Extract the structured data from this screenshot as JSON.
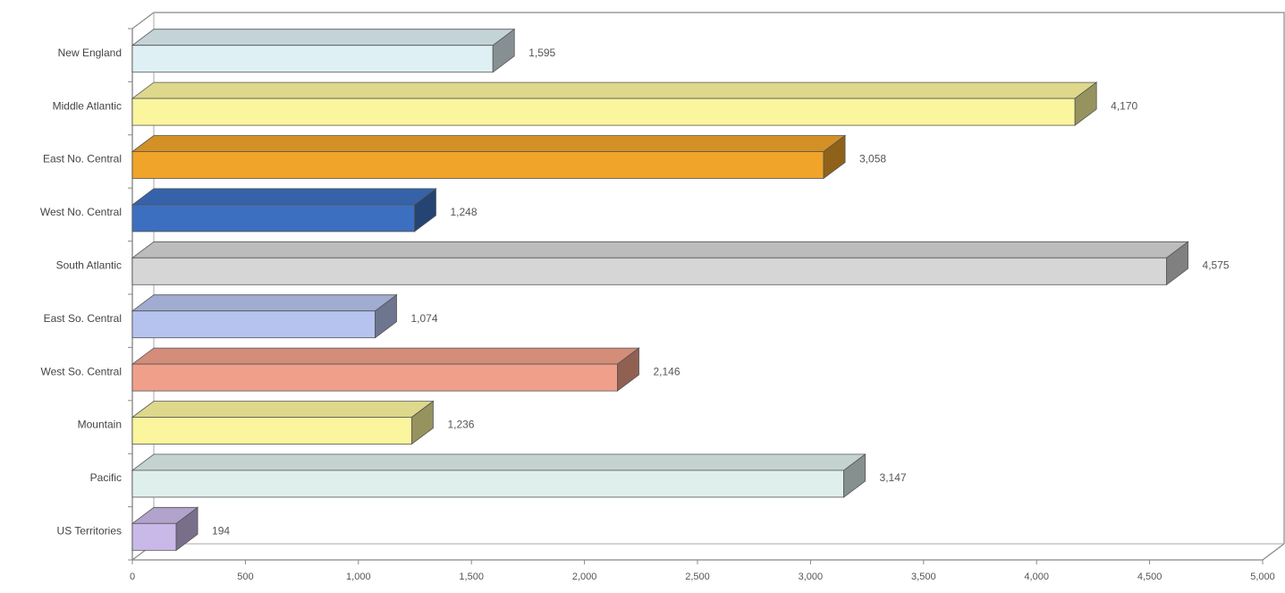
{
  "chart_data": {
    "type": "bar",
    "orientation": "horizontal",
    "style": "3d",
    "categories": [
      "New England",
      "Middle Atlantic",
      "East No. Central",
      "West No. Central",
      "South Atlantic",
      "East So. Central",
      "West So. Central",
      "Mountain",
      "Pacific",
      "US Territories"
    ],
    "values": [
      1595,
      4170,
      3058,
      1248,
      4575,
      1074,
      2146,
      1236,
      3147,
      194
    ],
    "value_labels": [
      "1,595",
      "4,170",
      "3,058",
      "1,248",
      "4,575",
      "1,074",
      "2,146",
      "1,236",
      "3,147",
      "194"
    ],
    "colors": [
      "#dff0f5",
      "#fbf59e",
      "#f0a42a",
      "#3d6fc0",
      "#d6d6d6",
      "#b6c3ee",
      "#f0a08a",
      "#fbf59e",
      "#dff0ec",
      "#c9b9e8"
    ],
    "xlim": [
      0,
      5000
    ],
    "xticks": [
      0,
      500,
      1000,
      1500,
      2000,
      2500,
      3000,
      3500,
      4000,
      4500,
      5000
    ],
    "xtick_labels": [
      "0",
      "500",
      "1,000",
      "1,500",
      "2,000",
      "2,500",
      "3,000",
      "3,500",
      "4,000",
      "4,500",
      "5,000"
    ],
    "title": "",
    "xlabel": "",
    "ylabel": "",
    "grid": false,
    "legend": false
  }
}
